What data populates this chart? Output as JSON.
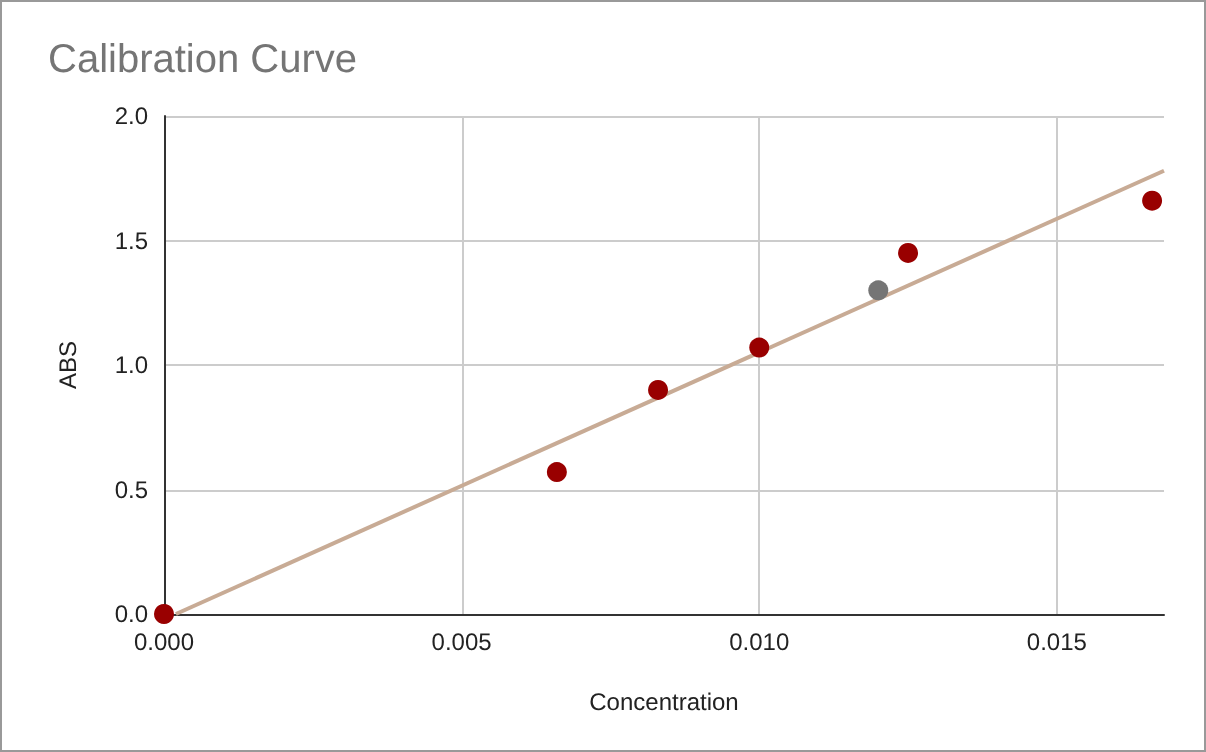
{
  "chart_data": {
    "type": "scatter",
    "title": "Calibration Curve",
    "xlabel": "Concentration",
    "ylabel": "ABS",
    "x": [
      0,
      0.0066,
      0.0083,
      0.01,
      0.0125,
      0.0166
    ],
    "series": [
      {
        "color": "#990000",
        "values": [
          0,
          0.57,
          0.9,
          1.07,
          1.45,
          1.66
        ]
      },
      {
        "color": "#757575",
        "x": [
          0.012
        ],
        "values": [
          1.3
        ]
      },
      {
        "type": "line",
        "marker": "none",
        "color": "#c8ab95",
        "x": [
          0.0002,
          0.0168
        ],
        "values": [
          0,
          1.78
        ]
      }
    ],
    "xlim": [
      0,
      0.0168
    ],
    "xticks": [
      {
        "value": 0,
        "label": "0.000"
      },
      0.005,
      {
        "value": 0.01,
        "label": "0.010"
      },
      0.015
    ],
    "ylim": [
      0,
      2
    ],
    "yticks": [
      {
        "value": 0,
        "label": "0.0"
      },
      0.5,
      {
        "value": 1,
        "label": "1.0"
      },
      1.5,
      {
        "value": 2,
        "label": "2.0"
      }
    ],
    "grid": true,
    "marker": "circle"
  }
}
